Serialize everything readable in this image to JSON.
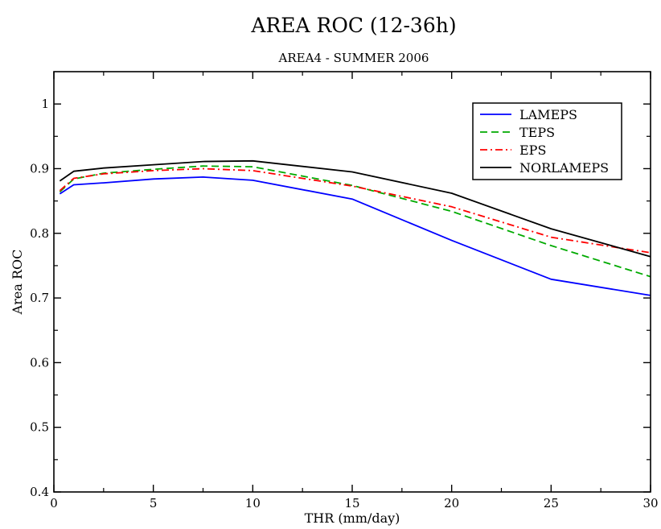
{
  "chart_data": {
    "type": "line",
    "title": "AREA ROC (12-36h)",
    "subtitle": "AREA4 - SUMMER 2006",
    "xlabel": "THR (mm/day)",
    "ylabel": "Area ROC",
    "xlim": [
      0,
      30
    ],
    "ylim": [
      0.4,
      1.05
    ],
    "xticks": [
      0,
      5,
      10,
      15,
      20,
      25,
      30
    ],
    "xtick_labels": [
      "0",
      "5",
      "10",
      "15",
      "20",
      "25",
      "30"
    ],
    "yticks": [
      0.4,
      0.5,
      0.6,
      0.7,
      0.8,
      0.9,
      1.0
    ],
    "ytick_labels": [
      "0.4",
      "0.5",
      "0.6",
      "0.7",
      "0.8",
      "0.9",
      "1"
    ],
    "grid": false,
    "legend_position": "top-right",
    "x": [
      0.3,
      1,
      2.5,
      5,
      7.5,
      10,
      15,
      20,
      25,
      30
    ],
    "series": [
      {
        "name": "LAMEPS",
        "color": "#0000ff",
        "dash": "solid",
        "values": [
          0.861,
          0.875,
          0.878,
          0.884,
          0.887,
          0.882,
          0.853,
          0.789,
          0.729,
          0.704
        ]
      },
      {
        "name": "TEPS",
        "color": "#00aa00",
        "dash": "dashed",
        "values": [
          0.864,
          0.884,
          0.893,
          0.899,
          0.904,
          0.903,
          0.874,
          0.834,
          0.781,
          0.733
        ]
      },
      {
        "name": "EPS",
        "color": "#ff0000",
        "dash": "dashdot",
        "values": [
          0.866,
          0.885,
          0.892,
          0.897,
          0.9,
          0.897,
          0.873,
          0.841,
          0.794,
          0.77
        ]
      },
      {
        "name": "NORLAMEPS",
        "color": "#000000",
        "dash": "solid",
        "values": [
          0.881,
          0.896,
          0.901,
          0.906,
          0.911,
          0.912,
          0.895,
          0.862,
          0.807,
          0.764
        ]
      }
    ]
  }
}
